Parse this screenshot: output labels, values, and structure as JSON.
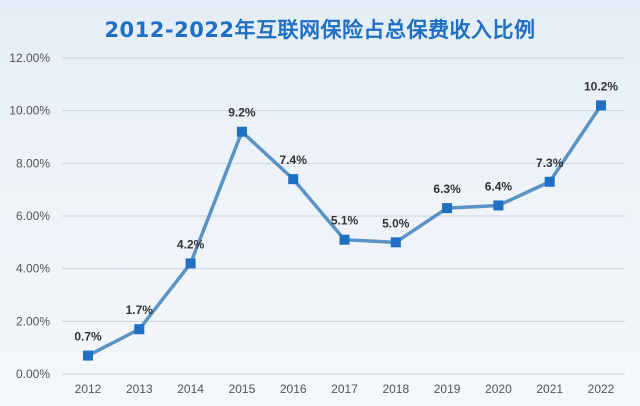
{
  "chart_data": {
    "type": "line",
    "title": "2012-2022年互联网保险占总保费收入比例",
    "xlabel": "",
    "ylabel": "",
    "categories": [
      "2012",
      "2013",
      "2014",
      "2015",
      "2016",
      "2017",
      "2018",
      "2019",
      "2020",
      "2021",
      "2022"
    ],
    "series": [
      {
        "name": "互联网保险占总保费收入比例",
        "values": [
          0.7,
          1.7,
          4.2,
          9.2,
          7.4,
          5.1,
          5.0,
          6.3,
          6.4,
          7.3,
          10.2
        ],
        "data_labels": [
          "0.7%",
          "1.7%",
          "4.2%",
          "9.2%",
          "7.4%",
          "5.1%",
          "5.0%",
          "6.3%",
          "6.4%",
          "7.3%",
          "10.2%"
        ]
      }
    ],
    "ylim": [
      0,
      12
    ],
    "yticks": [
      0,
      2,
      4,
      6,
      8,
      10,
      12
    ],
    "ytick_labels": [
      "0.00%",
      "2.00%",
      "4.00%",
      "6.00%",
      "8.00%",
      "10.00%",
      "12.00%"
    ],
    "grid": true,
    "legend": "none",
    "colors": {
      "line": "#5b93c7",
      "marker": "#1f6fc4",
      "grid": "#c9d3de",
      "title": "#1f6fc4"
    }
  }
}
